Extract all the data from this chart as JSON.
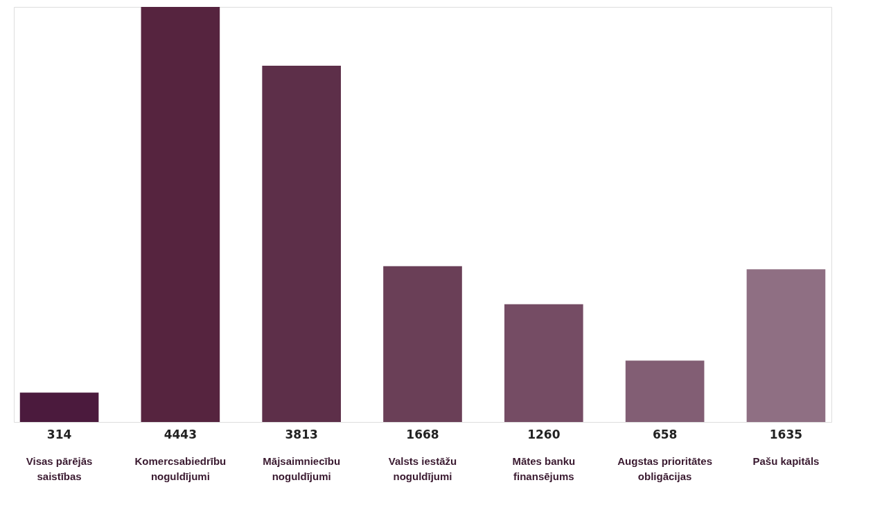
{
  "chart_data": {
    "type": "bar",
    "categories": [
      "Visas pārējās saistības",
      "Komercsabiedrību noguldījumi",
      "Mājsaimniecību noguldījumi",
      "Valsts iestāžu noguldījumi",
      "Mātes banku finansējums",
      "Augstas prioritātes obligācijas",
      "Pašu kapitāls"
    ],
    "values": [
      314,
      4443,
      3813,
      1668,
      1260,
      658,
      1635
    ],
    "colors": [
      "#4b1a3d",
      "#56243f",
      "#5d2f49",
      "#6a3f57",
      "#754c64",
      "#825e74",
      "#8f6f83"
    ],
    "data_labels": true
  }
}
